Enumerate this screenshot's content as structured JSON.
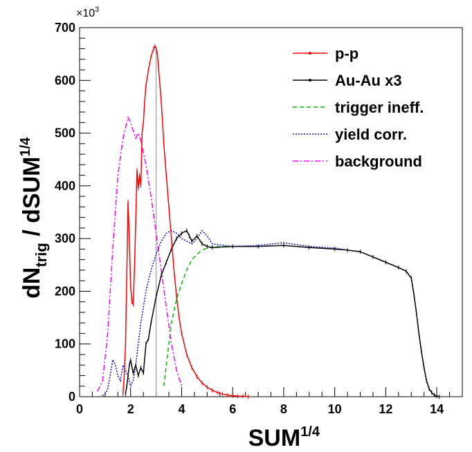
{
  "chart_data": {
    "type": "line",
    "title": "",
    "xlabel": "SUM",
    "xlabel_sup": "1/4",
    "ylabel_parts": {
      "d": "dN",
      "sub": "trig",
      "mid": " / dSUM",
      "sup": "1/4"
    },
    "y_multiplier": {
      "base": "×10",
      "exp": "3"
    },
    "xlim": [
      0,
      15
    ],
    "ylim": [
      0,
      700
    ],
    "x_ticks": [
      "0",
      "2",
      "4",
      "6",
      "8",
      "10",
      "12",
      "14"
    ],
    "y_ticks": [
      "0",
      "100",
      "200",
      "300",
      "400",
      "500",
      "600",
      "700"
    ],
    "legend_position": "top-right",
    "grid": false,
    "marker_x": 3.0,
    "series": [
      {
        "name": "p-p",
        "color": "#ff0000",
        "style": "solid",
        "markers": true,
        "x": [
          1.7,
          1.75,
          1.8,
          1.85,
          1.9,
          1.95,
          2.0,
          2.05,
          2.1,
          2.15,
          2.2,
          2.25,
          2.3,
          2.35,
          2.4,
          2.45,
          2.5,
          2.55,
          2.6,
          2.7,
          2.8,
          2.9,
          2.95,
          3.0,
          3.05,
          3.1,
          3.2,
          3.3,
          3.4,
          3.5,
          3.6,
          3.7,
          3.8,
          3.9,
          4.0,
          4.2,
          4.4,
          4.6,
          4.8,
          5.0,
          5.2,
          5.4,
          5.6,
          5.8,
          6.0,
          6.2,
          6.4,
          6.6
        ],
        "y": [
          5,
          40,
          100,
          230,
          370,
          300,
          210,
          180,
          175,
          240,
          330,
          430,
          395,
          420,
          400,
          500,
          520,
          560,
          590,
          620,
          645,
          660,
          665,
          660,
          650,
          620,
          560,
          480,
          420,
          360,
          300,
          240,
          190,
          150,
          120,
          80,
          55,
          38,
          26,
          18,
          12,
          8,
          5,
          3,
          2,
          1,
          1,
          0
        ]
      },
      {
        "name": "Au-Au x3",
        "color": "#000000",
        "style": "solid",
        "markers": true,
        "x": [
          1.8,
          1.85,
          1.9,
          1.95,
          2.0,
          2.1,
          2.2,
          2.3,
          2.4,
          2.5,
          2.6,
          2.7,
          2.8,
          3.0,
          3.2,
          3.4,
          3.6,
          3.8,
          4.0,
          4.2,
          4.3,
          4.4,
          4.6,
          4.8,
          5.0,
          5.2,
          6.0,
          7.0,
          8.0,
          9.0,
          10.0,
          10.5,
          11.0,
          11.5,
          12.0,
          12.5,
          12.8,
          13.0,
          13.1,
          13.2,
          13.3,
          13.4,
          13.5,
          13.6,
          13.7,
          13.8,
          13.9,
          14.0,
          14.1
        ],
        "y": [
          5,
          20,
          40,
          60,
          70,
          45,
          60,
          40,
          55,
          45,
          100,
          110,
          140,
          190,
          230,
          255,
          280,
          300,
          310,
          315,
          305,
          295,
          305,
          290,
          285,
          283,
          285,
          285,
          287,
          283,
          280,
          278,
          275,
          265,
          255,
          245,
          238,
          225,
          195,
          160,
          120,
          85,
          55,
          30,
          15,
          8,
          3,
          1,
          0
        ]
      },
      {
        "name": "trigger ineff.",
        "color": "#00bb00",
        "style": "dashed",
        "markers": false,
        "x": [
          3.3,
          3.4,
          3.5,
          3.6,
          3.8,
          4.0,
          4.2,
          4.4,
          4.6,
          4.8,
          5.0,
          5.2,
          5.5,
          6.0
        ],
        "y": [
          20,
          60,
          100,
          140,
          185,
          215,
          240,
          260,
          270,
          278,
          282,
          284,
          285,
          285
        ]
      },
      {
        "name": "yield corr.",
        "color": "#0000ff",
        "style": "dotted",
        "markers": false,
        "x": [
          0.9,
          1.0,
          1.1,
          1.2,
          1.3,
          1.4,
          1.5,
          1.6,
          1.7,
          1.8,
          1.9,
          2.0,
          2.1,
          2.2,
          2.3,
          2.4,
          2.5,
          2.6,
          2.7,
          2.8,
          3.0,
          3.2,
          3.4,
          3.6,
          3.8,
          4.0,
          4.2,
          4.4,
          4.6,
          4.8,
          5.0,
          5.2,
          6.0,
          7.0,
          8.0,
          9.0,
          10.0,
          10.5,
          11.0,
          11.5,
          12.0,
          12.5,
          12.8,
          13.0,
          13.1,
          13.2,
          13.3,
          13.4,
          13.5,
          13.6,
          13.7,
          13.8,
          13.9,
          14.0,
          14.1
        ],
        "y": [
          2,
          5,
          15,
          40,
          70,
          60,
          40,
          30,
          60,
          50,
          40,
          20,
          30,
          60,
          100,
          140,
          170,
          200,
          220,
          240,
          270,
          295,
          310,
          315,
          310,
          300,
          295,
          290,
          300,
          315,
          305,
          290,
          285,
          287,
          292,
          285,
          282,
          278,
          275,
          265,
          255,
          245,
          238,
          225,
          195,
          160,
          120,
          85,
          55,
          30,
          15,
          8,
          3,
          1,
          0
        ]
      },
      {
        "name": "background",
        "color": "#ff00ff",
        "style": "dashdot",
        "markers": false,
        "x": [
          0.7,
          0.9,
          1.1,
          1.3,
          1.5,
          1.7,
          1.9,
          2.0,
          2.1,
          2.2,
          2.3,
          2.4,
          2.6,
          2.8,
          3.0,
          3.2,
          3.4,
          3.6,
          3.8,
          4.0
        ],
        "y": [
          10,
          30,
          120,
          280,
          420,
          490,
          530,
          520,
          505,
          490,
          500,
          485,
          440,
          380,
          310,
          240,
          170,
          100,
          50,
          20
        ]
      }
    ]
  }
}
